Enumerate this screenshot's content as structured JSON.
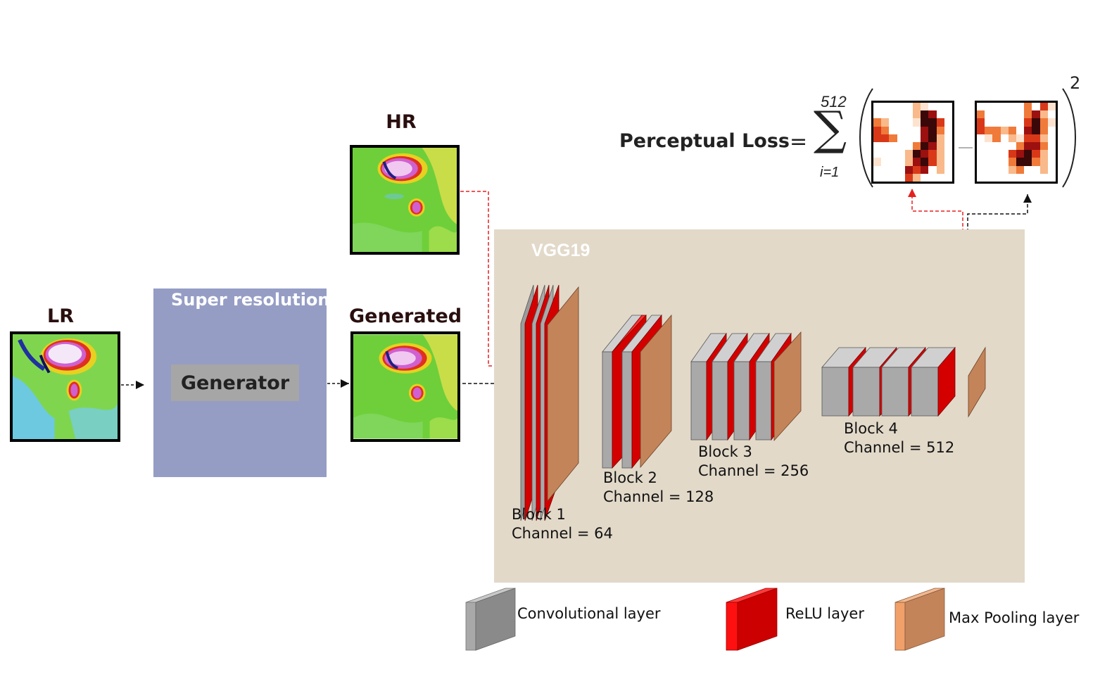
{
  "images": {
    "lr_label": "LR",
    "hr_label": "HR",
    "generated_label": "Generated"
  },
  "super_resolution": {
    "title": "Super resolution",
    "generator_label": "Generator"
  },
  "vgg": {
    "title": "VGG19",
    "blocks": [
      {
        "name": "Block 1",
        "channel": "Channel = 64"
      },
      {
        "name": "Block 2",
        "channel": "Channel = 128"
      },
      {
        "name": "Block 3",
        "channel": "Channel = 256"
      },
      {
        "name": "Block 4",
        "channel": "Channel = 512"
      }
    ]
  },
  "loss": {
    "label": "Perceptual Loss",
    "equals": "=",
    "sum_upper": "512",
    "sum_lower": "i=1",
    "sum_symbol": "∑",
    "exponent": "2"
  },
  "legend": {
    "conv": "Convolutional layer",
    "relu": "ReLU layer",
    "pool": "Max Pooling layer"
  },
  "colors": {
    "conv": "#a9a9a9",
    "relu": "#d40000",
    "pool": "#c4845a",
    "vgg_panel": "#e2d9c9",
    "sr_panel": "#959dc5",
    "hr_path": "#e52020",
    "gen_path": "#111111"
  }
}
